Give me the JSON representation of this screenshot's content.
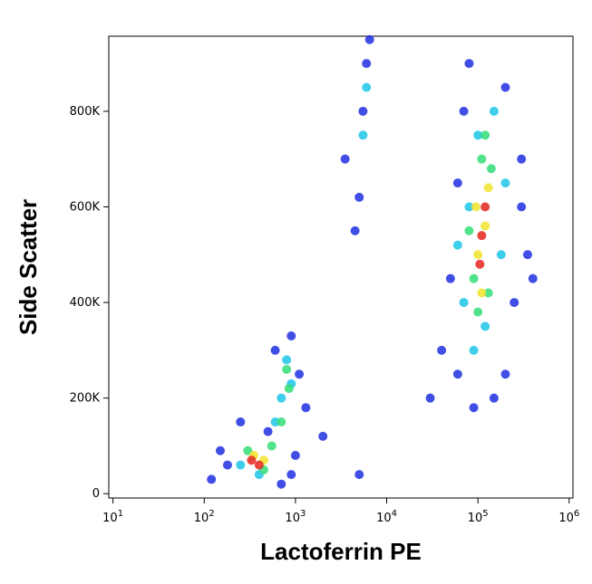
{
  "chart_data": {
    "type": "scatter",
    "x_label": "Lactoferrin PE",
    "y_label": "Side Scatter",
    "xscale": "log",
    "xlim": [
      9,
      1100000
    ],
    "xticks": [
      {
        "value": 10,
        "label": "10",
        "exponent": "1"
      },
      {
        "value": 100,
        "label": "10",
        "exponent": "2"
      },
      {
        "value": 1000,
        "label": "10",
        "exponent": "3"
      },
      {
        "value": 10000,
        "label": "10",
        "exponent": "4"
      },
      {
        "value": 100000,
        "label": "10",
        "exponent": "5"
      },
      {
        "value": 1000000,
        "label": "10",
        "exponent": "6"
      }
    ],
    "ylim": [
      -9000,
      957000
    ],
    "yticks": [
      0,
      {
        "value": 200000,
        "label": "200K"
      },
      {
        "value": 400000,
        "label": "400K"
      },
      {
        "value": 600000,
        "label": "600K"
      },
      {
        "value": 800000,
        "label": "800K"
      }
    ],
    "series": [
      {
        "color": "#1f2fe0",
        "x": [
          120,
          180,
          250,
          500,
          900,
          1100,
          1300,
          700,
          900,
          1000,
          150,
          600,
          3500,
          4500,
          5500,
          6000,
          5000,
          6500,
          40000,
          50000,
          60000,
          70000,
          200000,
          300000,
          250000,
          350000,
          80000,
          60000,
          200000,
          150000,
          90000,
          300000,
          400000,
          30000,
          2000,
          5000
        ],
        "values": [
          30000,
          60000,
          150000,
          130000,
          330000,
          250000,
          180000,
          20000,
          40000,
          80000,
          90000,
          300000,
          700000,
          550000,
          800000,
          900000,
          620000,
          950000,
          300000,
          450000,
          650000,
          800000,
          850000,
          700000,
          400000,
          500000,
          900000,
          250000,
          250000,
          200000,
          180000,
          600000,
          450000,
          200000,
          120000,
          40000
        ]
      },
      {
        "color": "#1cc6e8",
        "x": [
          250,
          400,
          600,
          700,
          800,
          900,
          70000,
          80000,
          100000,
          150000,
          180000,
          120000,
          90000,
          200000,
          60000,
          5500,
          6000
        ],
        "values": [
          60000,
          40000,
          150000,
          200000,
          280000,
          230000,
          400000,
          600000,
          750000,
          800000,
          500000,
          350000,
          300000,
          650000,
          520000,
          750000,
          850000
        ]
      },
      {
        "color": "#33dd77",
        "x": [
          300,
          450,
          550,
          700,
          850,
          800,
          90000,
          110000,
          140000,
          130000,
          100000,
          80000,
          120000
        ],
        "values": [
          90000,
          50000,
          100000,
          150000,
          220000,
          260000,
          450000,
          700000,
          680000,
          420000,
          380000,
          550000,
          750000
        ]
      },
      {
        "color": "#f2e32c",
        "x": [
          350,
          450,
          100000,
          130000,
          120000,
          110000,
          95000
        ],
        "values": [
          80000,
          70000,
          500000,
          640000,
          560000,
          420000,
          600000
        ]
      },
      {
        "color": "#e5241d",
        "x": [
          330,
          400,
          110000,
          120000,
          105000
        ],
        "values": [
          70000,
          60000,
          540000,
          600000,
          480000
        ]
      }
    ]
  }
}
